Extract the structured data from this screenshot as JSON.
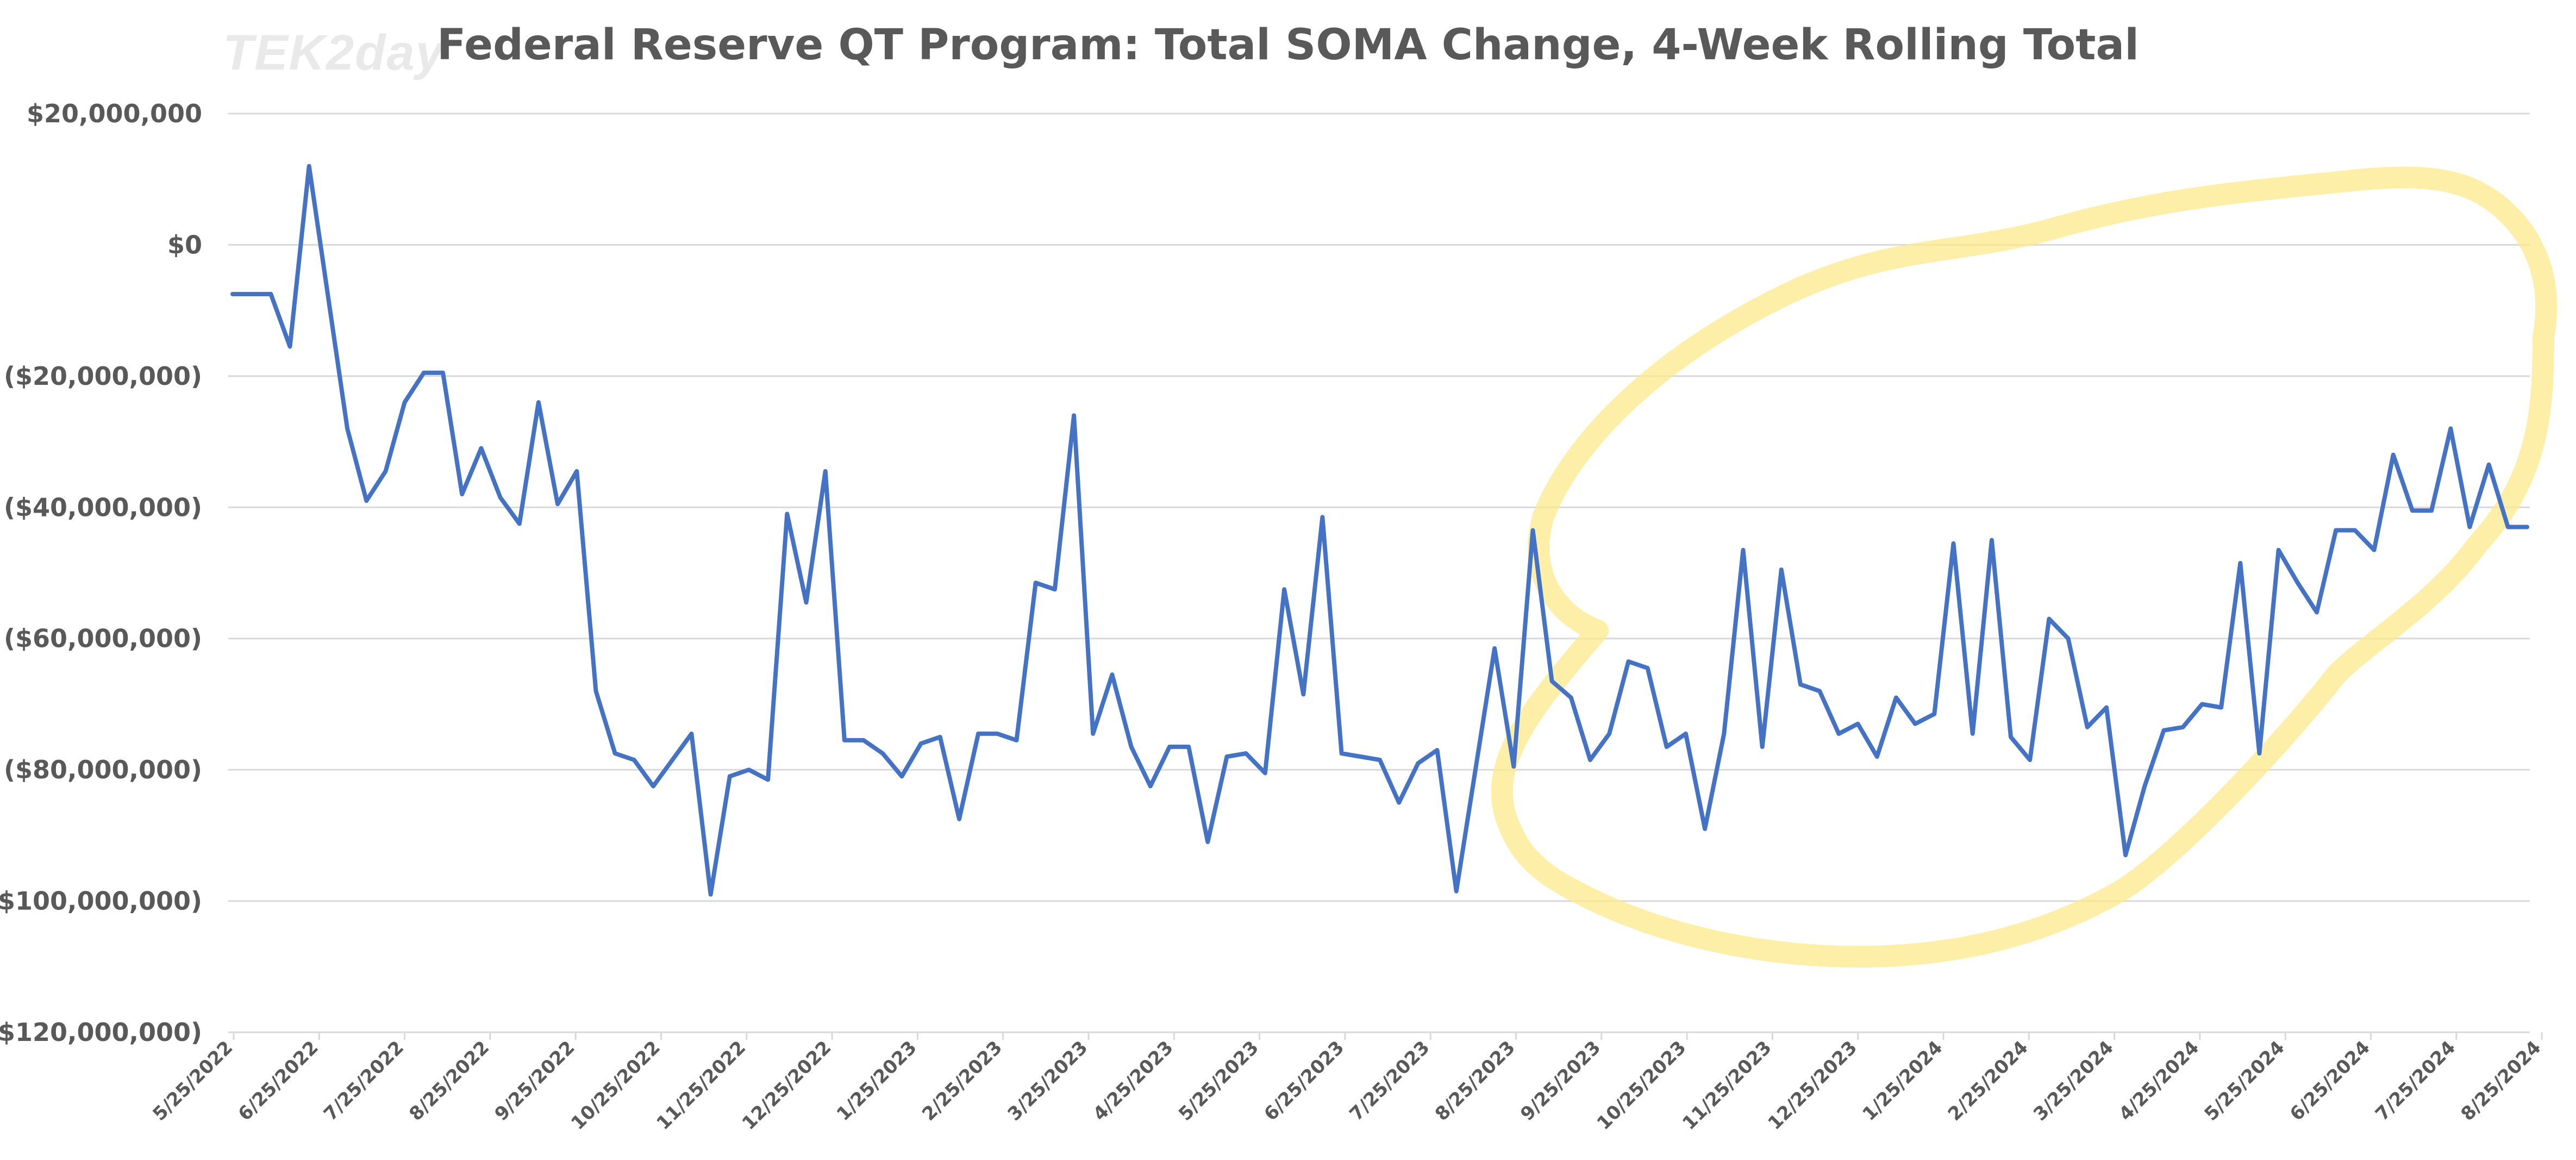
{
  "watermark": "TEK2day",
  "colors": {
    "line": "#4472c4",
    "highlight": "#fce98a",
    "grid": "#d9d9d9",
    "text": "#595959"
  },
  "chart_data": {
    "type": "line",
    "title": "Federal Reserve QT Program: Total SOMA Change, 4-Week Rolling Total",
    "xlabel": "",
    "ylabel": "",
    "ylim": [
      -120000000,
      20000000
    ],
    "yticks": [
      20000000,
      0,
      -20000000,
      -40000000,
      -60000000,
      -80000000,
      -100000000,
      -120000000
    ],
    "ytick_labels": [
      "$20,000,000",
      "$0",
      "($20,000,000)",
      "($40,000,000)",
      "($60,000,000)",
      "($80,000,000)",
      "($100,000,000)",
      "($120,000,000)"
    ],
    "x_tick_labels": [
      "5/25/2022",
      "6/25/2022",
      "7/25/2022",
      "8/25/2022",
      "9/25/2022",
      "10/25/2022",
      "11/25/2022",
      "12/25/2022",
      "1/25/2023",
      "2/25/2023",
      "3/25/2023",
      "4/25/2023",
      "5/25/2023",
      "6/25/2023",
      "7/25/2023",
      "8/25/2023",
      "9/25/2023",
      "10/25/2023",
      "11/25/2023",
      "12/25/2023",
      "1/25/2024",
      "2/25/2024",
      "3/25/2024",
      "4/25/2024",
      "5/25/2024",
      "6/25/2024",
      "7/25/2024",
      "8/25/2024"
    ],
    "grid": true,
    "legend": "none",
    "annotation": "hand-drawn yellow highlight circle around Sep 2023 - Sep 2024",
    "series": [
      {
        "name": "Total SOMA Change, 4-Week Rolling Total",
        "values": [
          -7500000,
          -7500000,
          -7500000,
          -15500000,
          12000000,
          -8000000,
          -28000000,
          -39000000,
          -34500000,
          -24000000,
          -19500000,
          -19500000,
          -38000000,
          -31000000,
          -38500000,
          -42500000,
          -24000000,
          -39500000,
          -34500000,
          -68000000,
          -77500000,
          -78500000,
          -82500000,
          -78500000,
          -74500000,
          -99000000,
          -81000000,
          -80000000,
          -81500000,
          -41000000,
          -54500000,
          -34500000,
          -75500000,
          -75500000,
          -77500000,
          -81000000,
          -76000000,
          -75000000,
          -87500000,
          -74500000,
          -74500000,
          -75500000,
          -51500000,
          -52500000,
          -26000000,
          -74500000,
          -65500000,
          -76500000,
          -82500000,
          -76500000,
          -76500000,
          -91000000,
          -78000000,
          -77500000,
          -80500000,
          -52500000,
          -68500000,
          -41500000,
          -77500000,
          -78000000,
          -78500000,
          -85000000,
          -79000000,
          -77000000,
          -98500000,
          -80000000,
          -61500000,
          -79500000,
          -43500000,
          -66500000,
          -69000000,
          -78500000,
          -74500000,
          -63500000,
          -64500000,
          -76500000,
          -74500000,
          -89000000,
          -74500000,
          -46500000,
          -76500000,
          -49500000,
          -67000000,
          -68000000,
          -74500000,
          -73000000,
          -78000000,
          -69000000,
          -73000000,
          -71500000,
          -45500000,
          -74500000,
          -45000000,
          -75000000,
          -78500000,
          -57000000,
          -60000000,
          -73500000,
          -70500000,
          -93000000,
          -82500000,
          -74000000,
          -73500000,
          -70000000,
          -70500000,
          -48500000,
          -77500000,
          -46500000,
          -51500000,
          -56000000,
          -43500000,
          -43500000,
          -46500000,
          -32000000,
          -40500000,
          -40500000,
          -28000000,
          -43000000,
          -33500000,
          -43000000,
          -43000000
        ]
      }
    ]
  }
}
